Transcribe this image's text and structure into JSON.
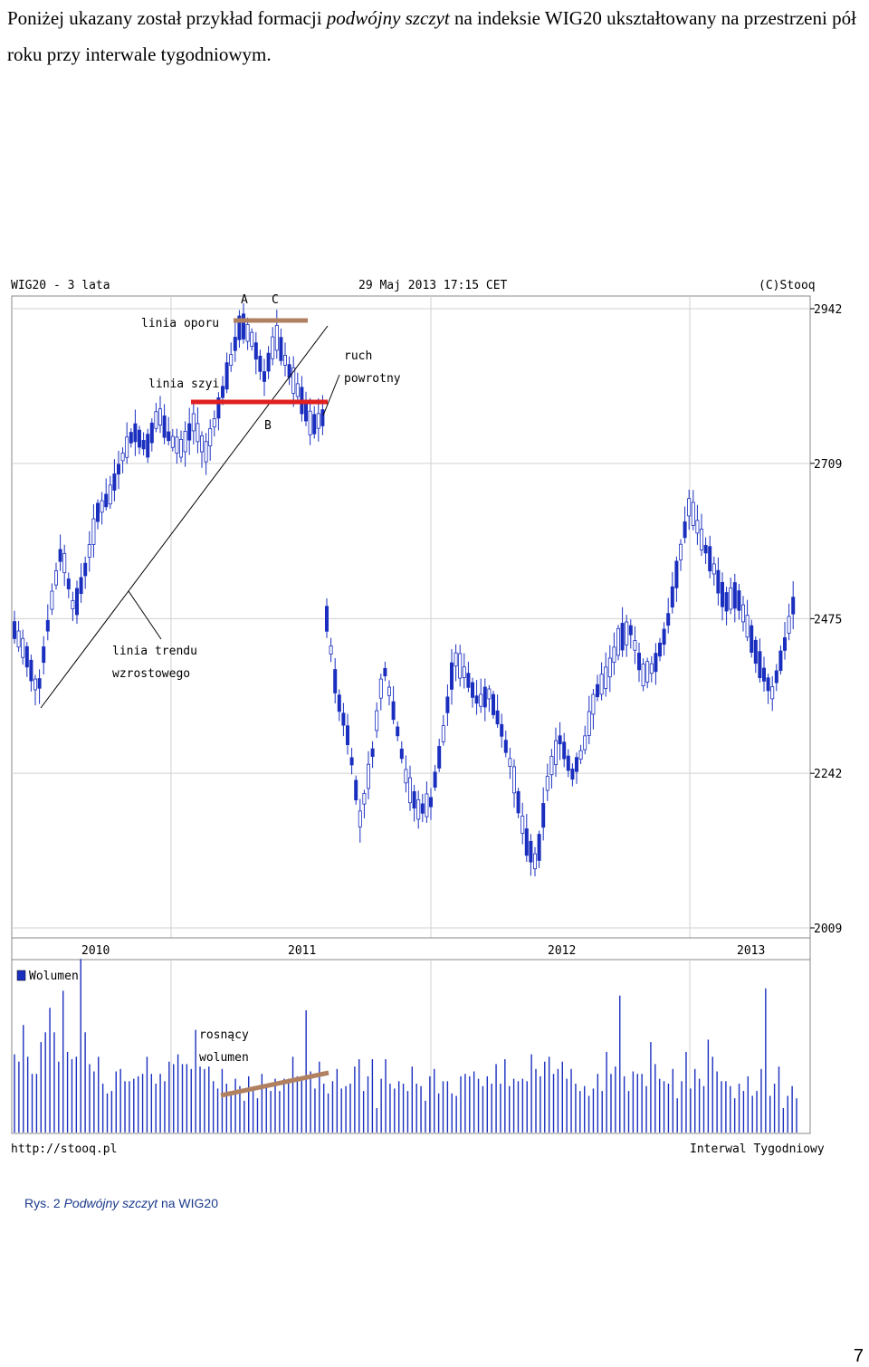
{
  "intro": {
    "part1": "Poniżej ukazany został przykład formacji ",
    "emph": "podwójny szczyt",
    "part2": " na indeksie WIG20 ukształtowany na przestrzeni pół roku przy interwale tygodniowym."
  },
  "chart_header": {
    "left": "WIG20 - 3 lata",
    "center": "29 Maj 2013 17:15 CET",
    "right": "(C)Stooq"
  },
  "chart_footer": {
    "left": "http://stooq.pl",
    "right": "Interwal Tygodniowy"
  },
  "annotations": {
    "point_a": "A",
    "point_b": "B",
    "point_c": "C",
    "resistance": "linia oporu",
    "neckline": "linia szyi",
    "pullback": [
      "ruch",
      "powrotny"
    ],
    "uptrend": [
      "linia trendu",
      "wzrostowego"
    ],
    "rising_volume": [
      "rosnący",
      "wolumen"
    ]
  },
  "volume_legend": "Wolumen",
  "colors": {
    "candle": "#1a2fbf",
    "neckline": "#e02020",
    "resistance": "#b08060",
    "grid": "#d0d0d0",
    "axis_text": "#000000"
  },
  "caption": {
    "label": "Rys. 2 ",
    "emph": "Podwójny szczyt",
    "rest": " na WIG20"
  },
  "page_number": "7",
  "chart_data": {
    "type": "line",
    "title": "WIG20 - 3 lata",
    "xlabel": "",
    "ylabel": "",
    "x_ticks": [
      "2010",
      "2011",
      "2012",
      "2013"
    ],
    "y_ticks": [
      2942,
      2709,
      2475,
      2242,
      2009
    ],
    "ylim": [
      2009,
      2942
    ],
    "grid": true,
    "series": [
      {
        "name": "Wolumen",
        "values": [
          32,
          29,
          44,
          31,
          24,
          24,
          37,
          41,
          51,
          41,
          29,
          58,
          33,
          30,
          31,
          71,
          41,
          28,
          25,
          31,
          20,
          16,
          17,
          25,
          26,
          21,
          21,
          22,
          23,
          24,
          31,
          24,
          20,
          24,
          21,
          29,
          28,
          32,
          28,
          28,
          26,
          42,
          27,
          26,
          27,
          21,
          18,
          26,
          20,
          16,
          22,
          19,
          13,
          23,
          17,
          14,
          24,
          19,
          17,
          22,
          17,
          22,
          22,
          31,
          23,
          23,
          50,
          25,
          18,
          29,
          20,
          16,
          21,
          26,
          18,
          19,
          20,
          27,
          30,
          17,
          23,
          30,
          10,
          22,
          30,
          20,
          18,
          21,
          20,
          17,
          27,
          20,
          19,
          13,
          23,
          26,
          16,
          21,
          21,
          16,
          15,
          23,
          24,
          23,
          25,
          22,
          19,
          23,
          20,
          28,
          20,
          30,
          19,
          22,
          21,
          22,
          21,
          32,
          26,
          23,
          29,
          31,
          24,
          26,
          29,
          22,
          26,
          20,
          17,
          19,
          15,
          18,
          24,
          17,
          33,
          24,
          27,
          56,
          23,
          17,
          25,
          24,
          24,
          19,
          37,
          28,
          22,
          21,
          20,
          26,
          14,
          21,
          33,
          18,
          26,
          22,
          19,
          38,
          31,
          25,
          21,
          21,
          19,
          14,
          20,
          17,
          23,
          15,
          17,
          26,
          59,
          15,
          20,
          27,
          10,
          15,
          19,
          14
        ]
      }
    ]
  }
}
